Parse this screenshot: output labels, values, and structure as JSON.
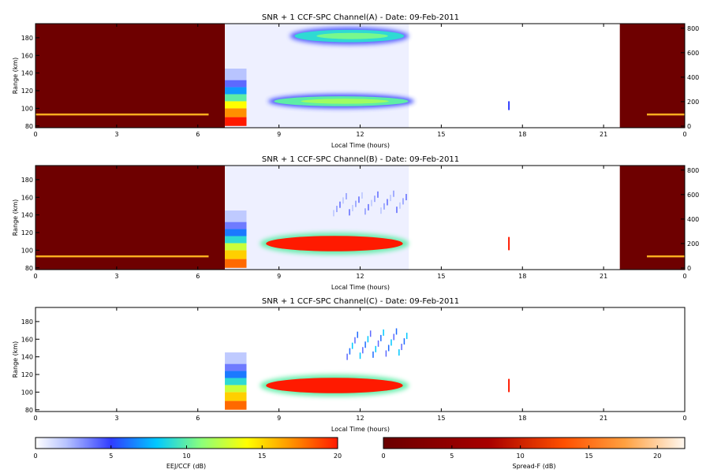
{
  "chart_data": {
    "type": "heatmap",
    "panels": [
      {
        "title": "SNR + 1 CCF-SPC Channel(A) - Date: 09-Feb-2011",
        "xlabel": "Local Time (hours)",
        "ylabel": "Range (km)",
        "xlim": [
          0,
          24
        ],
        "ylim": [
          78,
          196
        ],
        "x_ticks": [
          "0",
          "3",
          "6",
          "9",
          "12",
          "15",
          "18",
          "21",
          "0"
        ],
        "y_ticks": [
          "80",
          "100",
          "120",
          "140",
          "160",
          "180"
        ],
        "y2_ticks": [
          "0",
          "200",
          "400",
          "600",
          "800"
        ],
        "spread_f_background": true,
        "features": [
          {
            "kind": "echo_band",
            "x": [
              9.4,
              13.8
            ],
            "y": [
              172,
              192
            ],
            "level": 9
          },
          {
            "kind": "echo_band",
            "x": [
              8.6,
              14.0
            ],
            "y": [
              100,
              116
            ],
            "level": 10
          },
          {
            "kind": "sweep_block",
            "x": [
              7.0,
              7.8
            ],
            "y": [
              80,
              145
            ],
            "level": 20
          },
          {
            "kind": "spike",
            "x": 17.5,
            "y": [
              98,
              108
            ],
            "level": 5
          }
        ]
      },
      {
        "title": "SNR + 1 CCF-SPC Channel(B) - Date: 09-Feb-2011",
        "xlabel": "Local Time (hours)",
        "ylabel": "Range (km)",
        "xlim": [
          0,
          24
        ],
        "ylim": [
          78,
          196
        ],
        "x_ticks": [
          "0",
          "3",
          "6",
          "9",
          "12",
          "15",
          "18",
          "21",
          "0"
        ],
        "y_ticks": [
          "80",
          "100",
          "120",
          "140",
          "160",
          "180"
        ],
        "y2_ticks": [
          "0",
          "200",
          "400",
          "600",
          "800"
        ],
        "spread_f_background": true,
        "features": [
          {
            "kind": "echo_band",
            "x": [
              8.3,
              13.8
            ],
            "y": [
              95,
              120
            ],
            "level": 20
          },
          {
            "kind": "scatter",
            "x": [
              11.0,
              13.8
            ],
            "y": [
              142,
              165
            ],
            "level": 4
          },
          {
            "kind": "sweep_block",
            "x": [
              7.0,
              7.8
            ],
            "y": [
              80,
              145
            ],
            "level": 18
          },
          {
            "kind": "spike",
            "x": 17.5,
            "y": [
              100,
              115
            ],
            "level": 20
          }
        ]
      },
      {
        "title": "SNR + 1 CCF-SPC Channel(C) - Date: 09-Feb-2011",
        "xlabel": "Local Time (hours)",
        "ylabel": "Range (km)",
        "xlim": [
          0,
          24
        ],
        "ylim": [
          78,
          196
        ],
        "x_ticks": [
          "0",
          "3",
          "6",
          "9",
          "12",
          "15",
          "18",
          "21",
          "0"
        ],
        "y_ticks": [
          "80",
          "100",
          "120",
          "140",
          "160",
          "180"
        ],
        "y2_ticks": [],
        "spread_f_background": false,
        "features": [
          {
            "kind": "echo_band",
            "x": [
              8.3,
              13.8
            ],
            "y": [
              95,
              120
            ],
            "level": 20
          },
          {
            "kind": "scatter",
            "x": [
              11.5,
              13.8
            ],
            "y": [
              140,
              170
            ],
            "level": 8
          },
          {
            "kind": "sweep_block",
            "x": [
              7.0,
              7.8
            ],
            "y": [
              80,
              145
            ],
            "level": 18
          },
          {
            "kind": "spike",
            "x": 17.5,
            "y": [
              100,
              115
            ],
            "level": 20
          }
        ]
      }
    ],
    "colorbars": [
      {
        "label": "EEJ/CCF (dB)",
        "ticks": [
          "0",
          "5",
          "10",
          "15",
          "20"
        ],
        "range": [
          0,
          20
        ],
        "colormap": "jet-from-white"
      },
      {
        "label": "Spread-F (dB)",
        "ticks": [
          "0",
          "5",
          "10",
          "15",
          "20"
        ],
        "range": [
          0,
          22
        ],
        "colormap": "dark-red-to-white"
      }
    ]
  }
}
